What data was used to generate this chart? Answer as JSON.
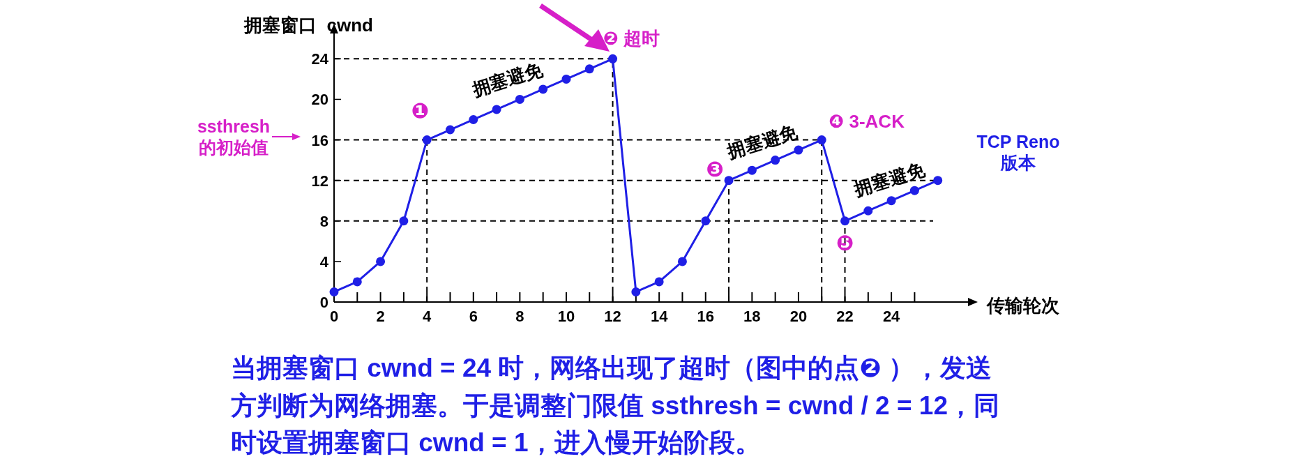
{
  "chart_data": {
    "type": "line",
    "xlabel": "传输轮次",
    "ylabel": "拥塞窗口  cwnd",
    "x": [
      0,
      1,
      2,
      3,
      4,
      5,
      6,
      7,
      8,
      9,
      10,
      11,
      12,
      13,
      14,
      15,
      16,
      17,
      18,
      19,
      20,
      21,
      22,
      23,
      24,
      25,
      26
    ],
    "series": [
      {
        "color": "#1f1fe6",
        "values": [
          1,
          2,
          4,
          8,
          16,
          17,
          18,
          19,
          20,
          21,
          22,
          23,
          24,
          1,
          2,
          4,
          8,
          12,
          13,
          14,
          15,
          16,
          8,
          9,
          10,
          11,
          12
        ]
      }
    ],
    "marker": "circle",
    "line_style": "solid",
    "grid": false,
    "xlim": [
      0,
      27.3
    ],
    "ylim": [
      0,
      26.5
    ],
    "xticks": [
      0,
      {
        "value": 1,
        "label": null
      },
      2,
      {
        "value": 3,
        "label": null
      },
      4,
      {
        "value": 5,
        "label": null
      },
      6,
      {
        "value": 7,
        "label": null
      },
      8,
      {
        "value": 9,
        "label": null
      },
      10,
      {
        "value": 11,
        "label": null
      },
      12,
      {
        "value": 13,
        "label": null
      },
      14,
      {
        "value": 15,
        "label": null
      },
      16,
      {
        "value": 17,
        "label": null
      },
      18,
      {
        "value": 19,
        "label": null
      },
      20,
      {
        "value": 21,
        "label": null
      },
      22,
      {
        "value": 23,
        "label": null
      },
      24,
      {
        "value": 25,
        "label": null
      }
    ],
    "yticks": [
      0,
      4,
      8,
      12,
      16,
      20,
      24
    ],
    "ref_lines": [
      {
        "axis": "y",
        "value": 24,
        "line_style": "dashed",
        "color": "#000000"
      },
      {
        "axis": "y",
        "value": 16,
        "line_style": "dashed",
        "color": "#000000"
      },
      {
        "axis": "y",
        "value": 12,
        "line_style": "dashed",
        "color": "#000000"
      },
      {
        "axis": "y",
        "value": 8,
        "line_style": "dashed",
        "color": "#000000"
      },
      {
        "axis": "x",
        "value": 4,
        "line_style": "dashed",
        "color": "#000000"
      },
      {
        "axis": "x",
        "value": 12,
        "line_style": "dashed",
        "color": "#000000"
      },
      {
        "axis": "x",
        "value": 17,
        "line_style": "dashed",
        "color": "#000000"
      },
      {
        "axis": "x",
        "value": 21,
        "line_style": "dashed",
        "color": "#000000"
      },
      {
        "axis": "x",
        "value": 22,
        "line_style": "dashed",
        "color": "#000000"
      }
    ],
    "annotations": [
      {
        "text": "❶",
        "x": 4,
        "y": 16
      },
      {
        "text": "拥塞避免",
        "x": 8,
        "y": 20
      },
      {
        "text": "❷ 超时",
        "x": 12,
        "y": 24
      },
      {
        "text": "❸",
        "x": 17,
        "y": 12
      },
      {
        "text": "拥塞避免",
        "x": 19,
        "y": 14
      },
      {
        "text": "❹ 3-ACK",
        "x": 21,
        "y": 16
      },
      {
        "text": "❺",
        "x": 22,
        "y": 8
      },
      {
        "text": "拥塞避免",
        "x": 24,
        "y": 10
      },
      "ssthresh\n的初始值",
      "TCP Reno\n版本",
      "当拥塞窗口 cwnd = 24 时，网络出现了超时（图中的点❷ ），发送方判断为网络拥塞。于是调整门限值 ssthresh = cwnd / 2 = 12，同时设置拥塞窗口 cwnd = 1，进入慢开始阶段。"
    ]
  }
}
